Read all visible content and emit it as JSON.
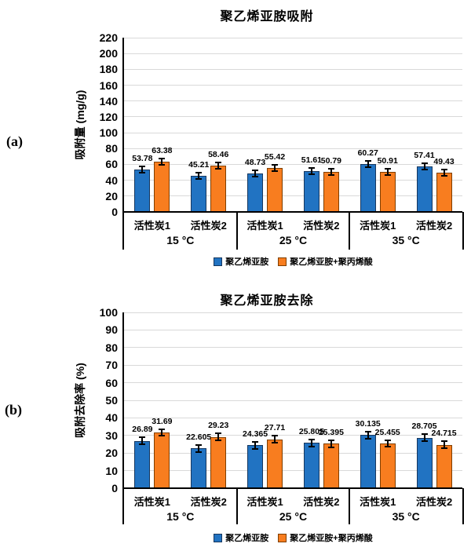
{
  "style": {
    "background": "#FFFFFF",
    "gridline": "#D9D9D9",
    "axis_color": "#000000",
    "text_color": "#000000",
    "series_blue": "#2173C2",
    "series_blue_border": "#17375E",
    "series_orange": "#F87D1F",
    "series_orange_border": "#7F3E00"
  },
  "chart_data": [
    {
      "id": "a",
      "figure_label": "(a)",
      "type": "bar",
      "title": "聚乙烯亚胺吸附",
      "xlabel": "",
      "ylabel": "吸附量 (mg/g)",
      "ylim": [
        0,
        220
      ],
      "ytick_step": 20,
      "grid": true,
      "legend_position": "bottom",
      "error_bars": true,
      "groups": [
        "15 °C",
        "25 °C",
        "35 °C"
      ],
      "categories_per_group": [
        "活性炭1",
        "活性炭2"
      ],
      "series": [
        {
          "name": "聚乙烯亚胺",
          "color": "#2173C2",
          "border": "#17375E",
          "values": [
            53.78,
            45.21,
            48.73,
            51.61,
            60.27,
            57.41
          ],
          "labels": [
            "53.78",
            "45.21",
            "48.73",
            "51.61",
            "60.27",
            "57.41"
          ],
          "errors": [
            4,
            4,
            4,
            4,
            4,
            4
          ]
        },
        {
          "name": "聚乙烯亚胺+聚丙烯酸",
          "color": "#F87D1F",
          "border": "#7F3E00",
          "values": [
            63.38,
            58.46,
            55.42,
            50.79,
            50.91,
            49.43
          ],
          "labels": [
            "63.38",
            "58.46",
            "55.42",
            "50.79",
            "50.91",
            "49.43"
          ],
          "errors": [
            4,
            4,
            4,
            4,
            4,
            4
          ]
        }
      ]
    },
    {
      "id": "b",
      "figure_label": "(b)",
      "type": "bar",
      "title": "聚乙烯亚胺去除",
      "xlabel": "",
      "ylabel": "吸附去除率 (%)",
      "ylim": [
        0,
        100
      ],
      "ytick_step": 10,
      "grid": true,
      "legend_position": "bottom",
      "error_bars": true,
      "groups": [
        "15 °C",
        "25 °C",
        "35 °C"
      ],
      "categories_per_group": [
        "活性炭1",
        "活性炭2"
      ],
      "series": [
        {
          "name": "聚乙烯亚胺",
          "color": "#2173C2",
          "border": "#17375E",
          "values": [
            26.89,
            22.605,
            24.365,
            25.805,
            30.135,
            28.705
          ],
          "labels": [
            "26.89",
            "22.605",
            "24.365",
            "25.805",
            "30.135",
            "28.705"
          ],
          "errors": [
            2,
            2,
            2,
            2,
            2,
            2
          ]
        },
        {
          "name": "聚乙烯亚胺+聚丙烯酸",
          "color": "#F87D1F",
          "border": "#7F3E00",
          "values": [
            31.69,
            29.23,
            27.71,
            25.395,
            25.455,
            24.715
          ],
          "labels": [
            "31.69",
            "29.23",
            "27.71",
            "25.395",
            "25.455",
            "24.715"
          ],
          "errors": [
            2,
            2,
            2,
            2,
            2,
            2
          ]
        }
      ]
    }
  ]
}
